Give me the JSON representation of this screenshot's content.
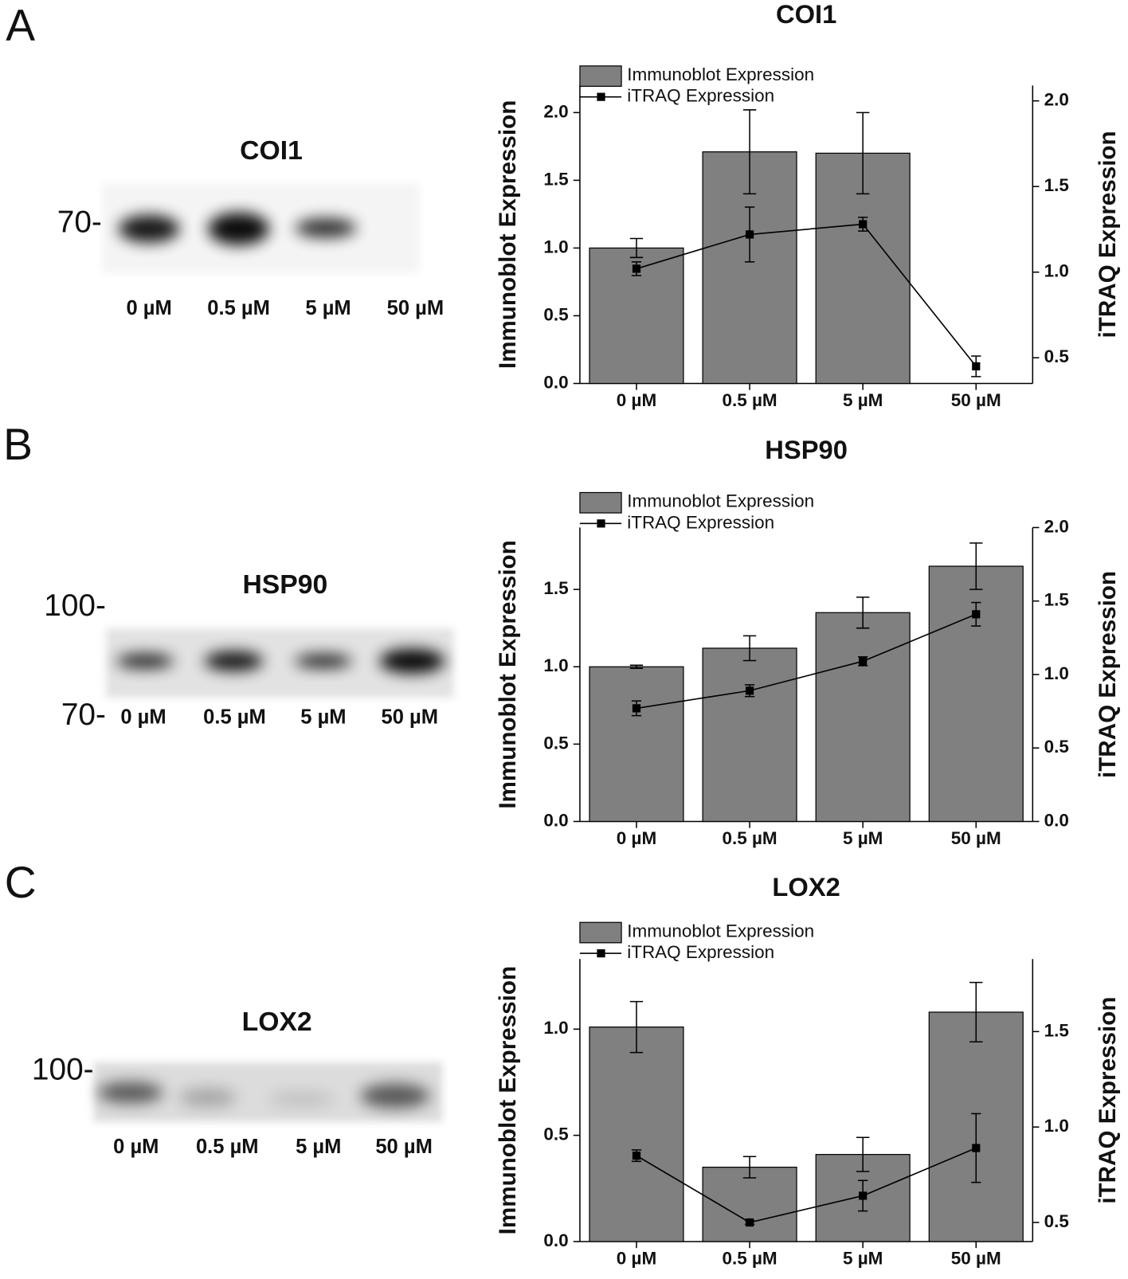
{
  "chart_data": [
    {
      "type": "bar",
      "title": "COI1",
      "categories": [
        "0 µM",
        "0.5 µM",
        "5 µM",
        "50 µM"
      ],
      "y_label": "Immunoblot Expression",
      "y2_label": "iTRAQ Expression",
      "ylim": [
        0,
        2.2
      ],
      "yticks": [
        {
          "value": 0,
          "label": "0.0"
        },
        0.5,
        {
          "value": 1,
          "label": "1.0"
        },
        1.5,
        {
          "value": 2,
          "label": "2.0"
        }
      ],
      "y2lim": [
        0.35,
        2.09
      ],
      "y2ticks": [
        0.5,
        {
          "value": 1,
          "label": "1.0"
        },
        1.5,
        {
          "value": 2,
          "label": "2.0"
        }
      ],
      "legend": "upper left",
      "series": [
        {
          "name": "Immunoblot Expression",
          "type": "bar",
          "color": "#808080",
          "values": [
            1.0,
            1.71,
            1.7,
            0
          ],
          "errors": [
            0.07,
            0.31,
            0.3,
            null
          ]
        },
        {
          "name": "iTRAQ Expression",
          "type": "line",
          "axis": "y2",
          "color": "#000000",
          "values": [
            1.02,
            1.22,
            1.28,
            0.45
          ],
          "errors": [
            0.04,
            0.16,
            0.04,
            0.06
          ]
        }
      ]
    },
    {
      "type": "bar",
      "title": "HSP90",
      "categories": [
        "0 µM",
        "0.5 µM",
        "5 µM",
        "50 µM"
      ],
      "y_label": "Immunoblot Expression",
      "y2_label": "iTRAQ Expression",
      "ylim": [
        0,
        1.9
      ],
      "yticks": [
        {
          "value": 0,
          "label": "0.0"
        },
        0.5,
        {
          "value": 1,
          "label": "1.0"
        },
        1.5
      ],
      "y2lim": [
        0,
        2.0
      ],
      "y2ticks": [
        {
          "value": 0,
          "label": "0.0"
        },
        0.5,
        {
          "value": 1,
          "label": "1.0"
        },
        1.5,
        {
          "value": 2,
          "label": "2.0"
        }
      ],
      "legend": "upper left",
      "series": [
        {
          "name": "Immunoblot Expression",
          "type": "bar",
          "color": "#808080",
          "values": [
            1.0,
            1.12,
            1.35,
            1.65
          ],
          "errors": [
            0.01,
            0.08,
            0.1,
            0.15
          ]
        },
        {
          "name": "iTRAQ Expression",
          "type": "line",
          "axis": "y2",
          "color": "#000000",
          "values": [
            0.77,
            0.89,
            1.09,
            1.41
          ],
          "errors": [
            0.05,
            0.04,
            0.03,
            0.08
          ]
        }
      ]
    },
    {
      "type": "bar",
      "title": "LOX2",
      "categories": [
        "0 µM",
        "0.5 µM",
        "5 µM",
        "50 µM"
      ],
      "y_label": "Immunoblot Expression",
      "y2_label": "iTRAQ Expression",
      "ylim": [
        0,
        1.33
      ],
      "yticks": [
        {
          "value": 0,
          "label": "0.0"
        },
        0.5,
        {
          "value": 1,
          "label": "1.0"
        }
      ],
      "y2lim": [
        0.4,
        1.88
      ],
      "y2ticks": [
        0.5,
        {
          "value": 1,
          "label": "1.0"
        },
        1.5
      ],
      "legend": "upper left",
      "series": [
        {
          "name": "Immunoblot Expression",
          "type": "bar",
          "color": "#808080",
          "values": [
            1.01,
            0.35,
            0.41,
            1.08
          ],
          "errors": [
            0.12,
            0.05,
            0.08,
            0.14
          ]
        },
        {
          "name": "iTRAQ Expression",
          "type": "line",
          "axis": "y2",
          "color": "#000000",
          "values": [
            0.85,
            0.5,
            0.64,
            0.89
          ],
          "errors": [
            0.03,
            0.01,
            0.08,
            0.18
          ]
        }
      ]
    }
  ],
  "blots": [
    {
      "letter": "A",
      "title": "COI1",
      "markers": [
        "70-"
      ],
      "lanes": [
        "0 µM",
        "0.5 µM",
        "5 µM",
        "50 µM"
      ]
    },
    {
      "letter": "B",
      "title": "HSP90",
      "markers": [
        "100-",
        "70-"
      ],
      "lanes": [
        "0 µM",
        "0.5 µM",
        "5 µM",
        "50 µM"
      ]
    },
    {
      "letter": "C",
      "title": "LOX2",
      "markers": [
        "100-"
      ],
      "lanes": [
        "0 µM",
        "0.5 µM",
        "5 µM",
        "50 µM"
      ]
    }
  ]
}
